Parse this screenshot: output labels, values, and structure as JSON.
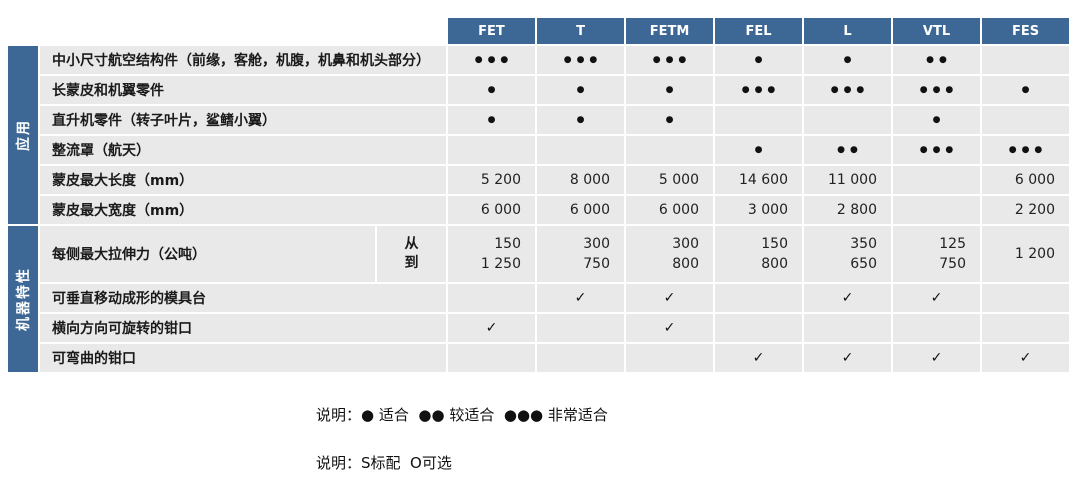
{
  "table": {
    "columns": [
      "FET",
      "T",
      "FETM",
      "FEL",
      "L",
      "VTL",
      "FES"
    ],
    "groups": {
      "application": "应用",
      "machine": "机器特性"
    },
    "rows": [
      {
        "label": "中小尺寸航空结构件（前缘，客舱，机腹，机鼻和机头部分）",
        "values": [
          "●●●",
          "●●●",
          "●●●",
          "●",
          "●",
          "●●",
          ""
        ]
      },
      {
        "label": "长蒙皮和机翼零件",
        "values": [
          "●",
          "●",
          "●",
          "●●●",
          "●●●",
          "●●●",
          "●"
        ]
      },
      {
        "label": "直升机零件（转子叶片，鲨鳍小翼）",
        "values": [
          "●",
          "●",
          "●",
          "",
          "",
          "●",
          ""
        ]
      },
      {
        "label": "整流罩（航天）",
        "values": [
          "",
          "",
          "",
          "●",
          "●●",
          "●●●",
          "●●●"
        ]
      },
      {
        "label": "蒙皮最大长度（mm）",
        "values": [
          "5 200",
          "8 000",
          "5 000",
          "14 600",
          "11 000",
          "",
          "6 000"
        ]
      },
      {
        "label": "蒙皮最大宽度（mm）",
        "values": [
          "6 000",
          "6 000",
          "6 000",
          "3 000",
          "2 800",
          "",
          "2 200"
        ]
      }
    ],
    "tension_row": {
      "label": "每侧最大拉伸力（公吨）",
      "from_label": "从",
      "to_label": "到",
      "from": [
        "150",
        "300",
        "300",
        "150",
        "350",
        "125",
        "1 200"
      ],
      "to": [
        "1 250",
        "750",
        "800",
        "800",
        "650",
        "750",
        ""
      ]
    },
    "feature_rows": [
      {
        "label": "可垂直移动成形的模具台",
        "values": [
          "",
          "✓",
          "✓",
          "",
          "✓",
          "✓",
          ""
        ]
      },
      {
        "label": "横向方向可旋转的钳口",
        "values": [
          "✓",
          "",
          "✓",
          "",
          "",
          "",
          ""
        ]
      },
      {
        "label": "可弯曲的钳口",
        "values": [
          "",
          "",
          "",
          "✓",
          "✓",
          "✓",
          "✓"
        ]
      }
    ],
    "legend_symbols": {
      "suitable": "●",
      "more_suitable": "●●",
      "most_suitable": "●●●",
      "check": "✓"
    },
    "colors": {
      "header_blue": "#3D6795",
      "cell_gray": "#E9E9E9",
      "grid_white": "#FFFFFF"
    }
  },
  "notes": [
    "说明：● 适合  ●● 较适合  ●●● 非常适合",
    "说明：S标配  O可选"
  ]
}
